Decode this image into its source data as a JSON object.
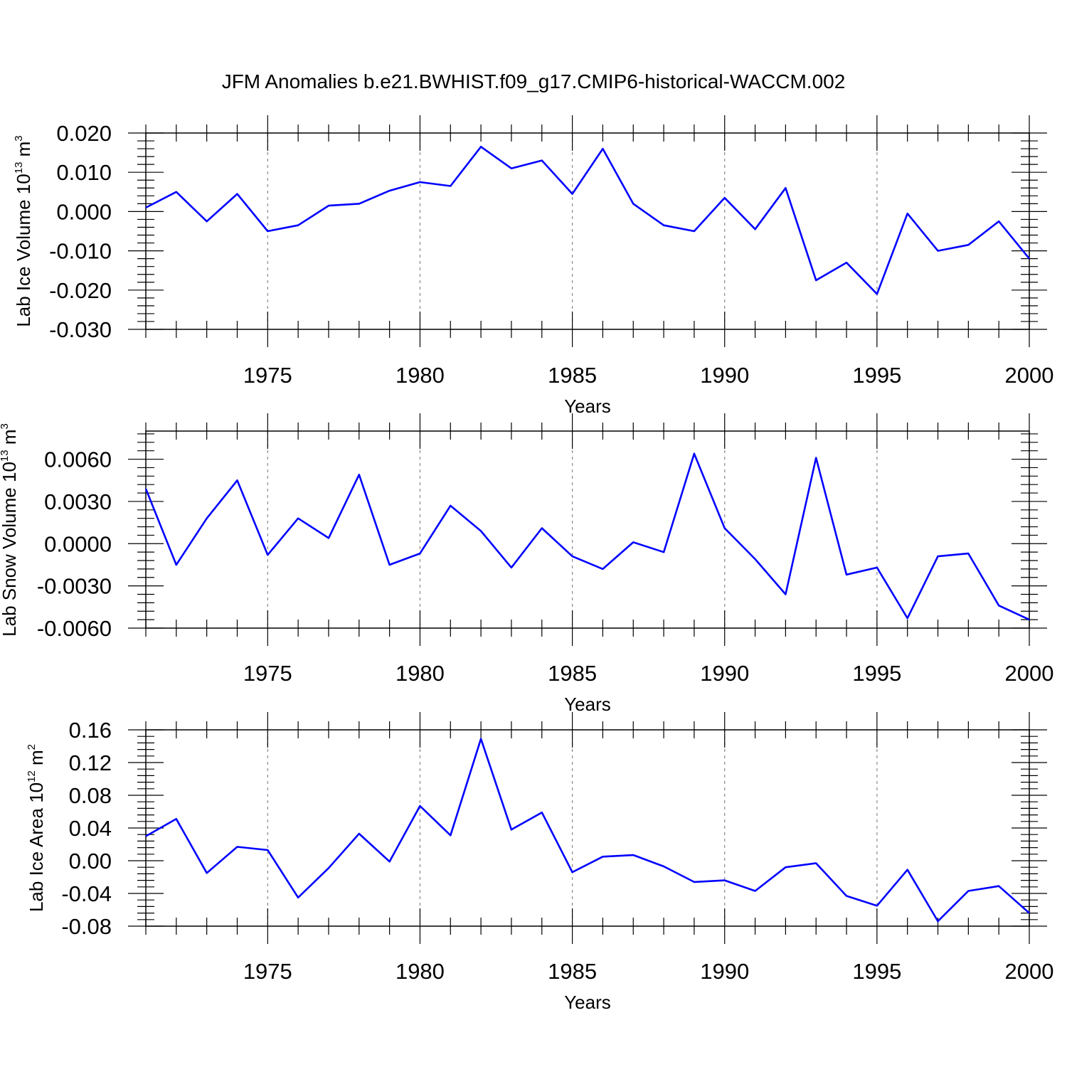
{
  "title": "JFM Anomalies b.e21.BWHIST.f09_g17.CMIP6-historical-WACCM.002",
  "colors": {
    "line": "#0000ff",
    "axis": "#000000",
    "grid": "#888888"
  },
  "chart_data": [
    {
      "type": "line",
      "ylabel": {
        "text": "Lab Ice Volume 10",
        "exp": "13",
        "unit": " m",
        "unit_exp": "3"
      },
      "xlabel": "Years",
      "xlim": [
        1971,
        2000
      ],
      "ylim": [
        -0.03,
        0.02
      ],
      "yticks": [
        -0.03,
        -0.02,
        -0.01,
        0.0,
        0.01,
        0.02
      ],
      "ytick_labels": [
        "-0.030",
        "-0.020",
        "-0.010",
        "0.000",
        "0.010",
        "0.020"
      ],
      "xticks": [
        1975,
        1980,
        1985,
        1990,
        1995,
        2000
      ],
      "xtick_labels": [
        "1975",
        "1980",
        "1985",
        "1990",
        "1995",
        "2000"
      ],
      "grid_x": "dashed at major x ticks",
      "x": [
        1971,
        1972,
        1973,
        1974,
        1975,
        1976,
        1977,
        1978,
        1979,
        1980,
        1981,
        1982,
        1983,
        1984,
        1985,
        1986,
        1987,
        1988,
        1989,
        1990,
        1991,
        1992,
        1993,
        1994,
        1995,
        1996,
        1997,
        1998,
        1999,
        2000
      ],
      "values": [
        0.001,
        0.005,
        -0.0025,
        0.0045,
        -0.005,
        -0.0035,
        0.0015,
        0.002,
        0.0053,
        0.0075,
        0.0065,
        0.0165,
        0.011,
        0.013,
        0.0045,
        0.016,
        0.002,
        -0.0035,
        -0.005,
        0.0035,
        -0.0045,
        0.006,
        -0.0175,
        -0.013,
        -0.021,
        -0.0005,
        -0.01,
        -0.0085,
        -0.0025,
        -0.012
      ]
    },
    {
      "type": "line",
      "ylabel": {
        "text": "Lab Snow Volume 10",
        "exp": "13",
        "unit": " m",
        "unit_exp": "3"
      },
      "xlabel": "Years",
      "xlim": [
        1971,
        2000
      ],
      "ylim": [
        -0.006,
        0.008
      ],
      "yticks": [
        -0.006,
        -0.003,
        0.0,
        0.003,
        0.006
      ],
      "ytick_labels": [
        "-0.0060",
        "-0.0030",
        "0.0000",
        "0.0030",
        "0.0060"
      ],
      "xticks": [
        1975,
        1980,
        1985,
        1990,
        1995,
        2000
      ],
      "xtick_labels": [
        "1975",
        "1980",
        "1985",
        "1990",
        "1995",
        "2000"
      ],
      "grid_x": "dashed at major x ticks",
      "x": [
        1971,
        1972,
        1973,
        1974,
        1975,
        1976,
        1977,
        1978,
        1979,
        1980,
        1981,
        1982,
        1983,
        1984,
        1985,
        1986,
        1987,
        1988,
        1989,
        1990,
        1991,
        1992,
        1993,
        1994,
        1995,
        1996,
        1997,
        1998,
        1999,
        2000
      ],
      "values": [
        0.0039,
        -0.0015,
        0.0018,
        0.0045,
        -0.0008,
        0.0018,
        0.0004,
        0.0049,
        -0.0015,
        -0.0007,
        0.0027,
        0.0009,
        -0.0017,
        0.0011,
        -0.0009,
        -0.0018,
        0.0001,
        -0.0006,
        0.0064,
        0.0011,
        -0.0011,
        -0.0036,
        0.0061,
        -0.0022,
        -0.0017,
        -0.0053,
        -0.0009,
        -0.0007,
        -0.0044,
        -0.0054
      ]
    },
    {
      "type": "line",
      "ylabel": {
        "text": "Lab Ice Area 10",
        "exp": "12",
        "unit": " m",
        "unit_exp": "2"
      },
      "xlabel": "Years",
      "xlim": [
        1971,
        2000
      ],
      "ylim": [
        -0.08,
        0.16
      ],
      "yticks": [
        -0.08,
        -0.04,
        0.0,
        0.04,
        0.08,
        0.12,
        0.16
      ],
      "ytick_labels": [
        "-0.08",
        "-0.04",
        "0.00",
        "0.04",
        "0.08",
        "0.12",
        "0.16"
      ],
      "xticks": [
        1975,
        1980,
        1985,
        1990,
        1995,
        2000
      ],
      "xtick_labels": [
        "1975",
        "1980",
        "1985",
        "1990",
        "1995",
        "2000"
      ],
      "grid_x": "dashed at major x ticks",
      "x": [
        1971,
        1972,
        1973,
        1974,
        1975,
        1976,
        1977,
        1978,
        1979,
        1980,
        1981,
        1982,
        1983,
        1984,
        1985,
        1986,
        1987,
        1988,
        1989,
        1990,
        1991,
        1992,
        1993,
        1994,
        1995,
        1996,
        1997,
        1998,
        1999,
        2000
      ],
      "values": [
        0.03,
        0.051,
        -0.015,
        0.017,
        0.013,
        -0.045,
        -0.009,
        0.033,
        -0.001,
        0.067,
        0.031,
        0.149,
        0.038,
        0.059,
        -0.014,
        0.005,
        0.007,
        -0.007,
        -0.026,
        -0.024,
        -0.037,
        -0.008,
        -0.003,
        -0.043,
        -0.055,
        -0.011,
        -0.074,
        -0.037,
        -0.031,
        -0.064
      ]
    }
  ]
}
